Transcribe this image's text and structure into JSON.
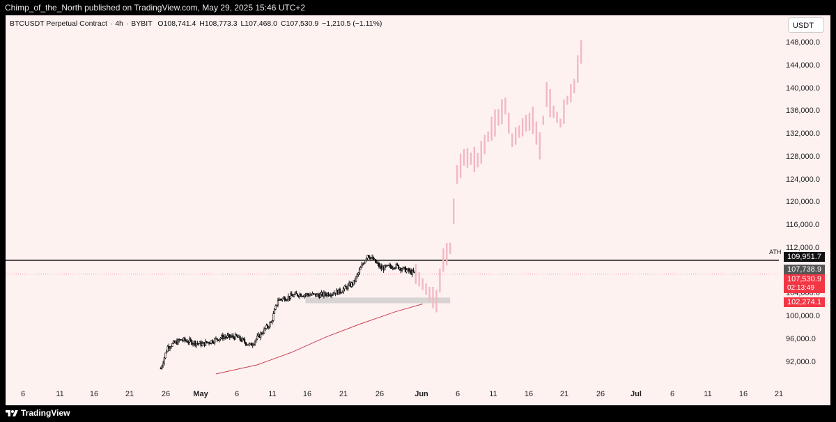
{
  "header": {
    "publisher_line": "Chimp_of_the_North published on TradingView.com, May 29, 2025 15:46 UTC+2"
  },
  "legend": {
    "symbol": "BTCUSDT Perpetual Contract",
    "interval": "4h",
    "exchange": "BYBIT",
    "open": "O108,741.4",
    "high": "H108,773.3",
    "low": "L107,468.0",
    "close": "C107,530.9",
    "change": "−1,210.5 (−1.11%)"
  },
  "currency_button": "USDT",
  "price_axis": {
    "ticks": [
      "148,000.0",
      "144,000.0",
      "140,000.0",
      "136,000.0",
      "132,000.0",
      "128,000.0",
      "124,000.0",
      "120,000.0",
      "116,000.0",
      "112,000.0",
      "104,000.0",
      "100,000.0",
      "96,000.0",
      "92,000.0"
    ],
    "ath_label": "ATH",
    "ath_value": "109,951.7",
    "ref_value": "107,738.9",
    "last_price": "107,530.9",
    "countdown": "02:13:49",
    "ma_value": "102,274.1"
  },
  "time_axis": {
    "ticks": [
      "6",
      "11",
      "16",
      "21",
      "26",
      "May",
      "6",
      "11",
      "16",
      "21",
      "26",
      "Jun",
      "6",
      "11",
      "16",
      "21",
      "26",
      "Jul",
      "6",
      "11",
      "16",
      "21"
    ]
  },
  "footer": {
    "brand": "TradingView"
  },
  "chart_data": {
    "type": "candlestick",
    "symbol": "BTCUSDT Perpetual Contract",
    "interval": "4h",
    "ylim": [
      90000,
      149000
    ],
    "x_range": [
      "2025-04-02",
      "2025-07-21"
    ],
    "support_zone": {
      "low": 102400,
      "high": 103400,
      "from": "2025-05-13",
      "to": "2025-06-03"
    },
    "ath_line": 109951.7,
    "moving_average": [
      [
        "2025-04-30",
        90000
      ],
      [
        "2025-05-06",
        91600
      ],
      [
        "2025-05-11",
        93800
      ],
      [
        "2025-05-16",
        96500
      ],
      [
        "2025-05-21",
        98800
      ],
      [
        "2025-05-26",
        100900
      ],
      [
        "2025-05-30",
        102274
      ]
    ],
    "historical_anchor": [
      [
        "2025-04-22",
        91000
      ],
      [
        "2025-04-23",
        94800
      ],
      [
        "2025-04-25",
        96000
      ],
      [
        "2025-04-28",
        95200
      ],
      [
        "2025-05-01",
        96500
      ],
      [
        "2025-05-03",
        96500
      ],
      [
        "2025-05-05",
        95000
      ],
      [
        "2025-05-08",
        99000
      ],
      [
        "2025-05-09",
        103000
      ],
      [
        "2025-05-12",
        104000
      ],
      [
        "2025-05-15",
        103800
      ],
      [
        "2025-05-18",
        104500
      ],
      [
        "2025-05-20",
        106000
      ],
      [
        "2025-05-22",
        111000
      ],
      [
        "2025-05-24",
        108500
      ],
      [
        "2025-05-26",
        109000
      ],
      [
        "2025-05-28",
        108000
      ],
      [
        "2025-05-29",
        107530
      ]
    ],
    "projection_anchor": [
      [
        "2025-05-29",
        107500
      ],
      [
        "2025-05-31",
        104000
      ],
      [
        "2025-06-01",
        102800
      ],
      [
        "2025-06-02",
        110000
      ],
      [
        "2025-06-03",
        112000
      ],
      [
        "2025-06-04",
        125000
      ],
      [
        "2025-06-05",
        128000
      ],
      [
        "2025-06-07",
        127500
      ],
      [
        "2025-06-09",
        133000
      ],
      [
        "2025-06-11",
        137000
      ],
      [
        "2025-06-12",
        131000
      ],
      [
        "2025-06-14",
        134000
      ],
      [
        "2025-06-15",
        134500
      ],
      [
        "2025-06-16",
        130000
      ],
      [
        "2025-06-17",
        139000
      ],
      [
        "2025-06-18",
        136000
      ],
      [
        "2025-06-19",
        134000
      ],
      [
        "2025-06-20",
        138000
      ],
      [
        "2025-06-21",
        140500
      ],
      [
        "2025-06-22",
        146500
      ]
    ],
    "xlabel": "",
    "ylabel": ""
  }
}
